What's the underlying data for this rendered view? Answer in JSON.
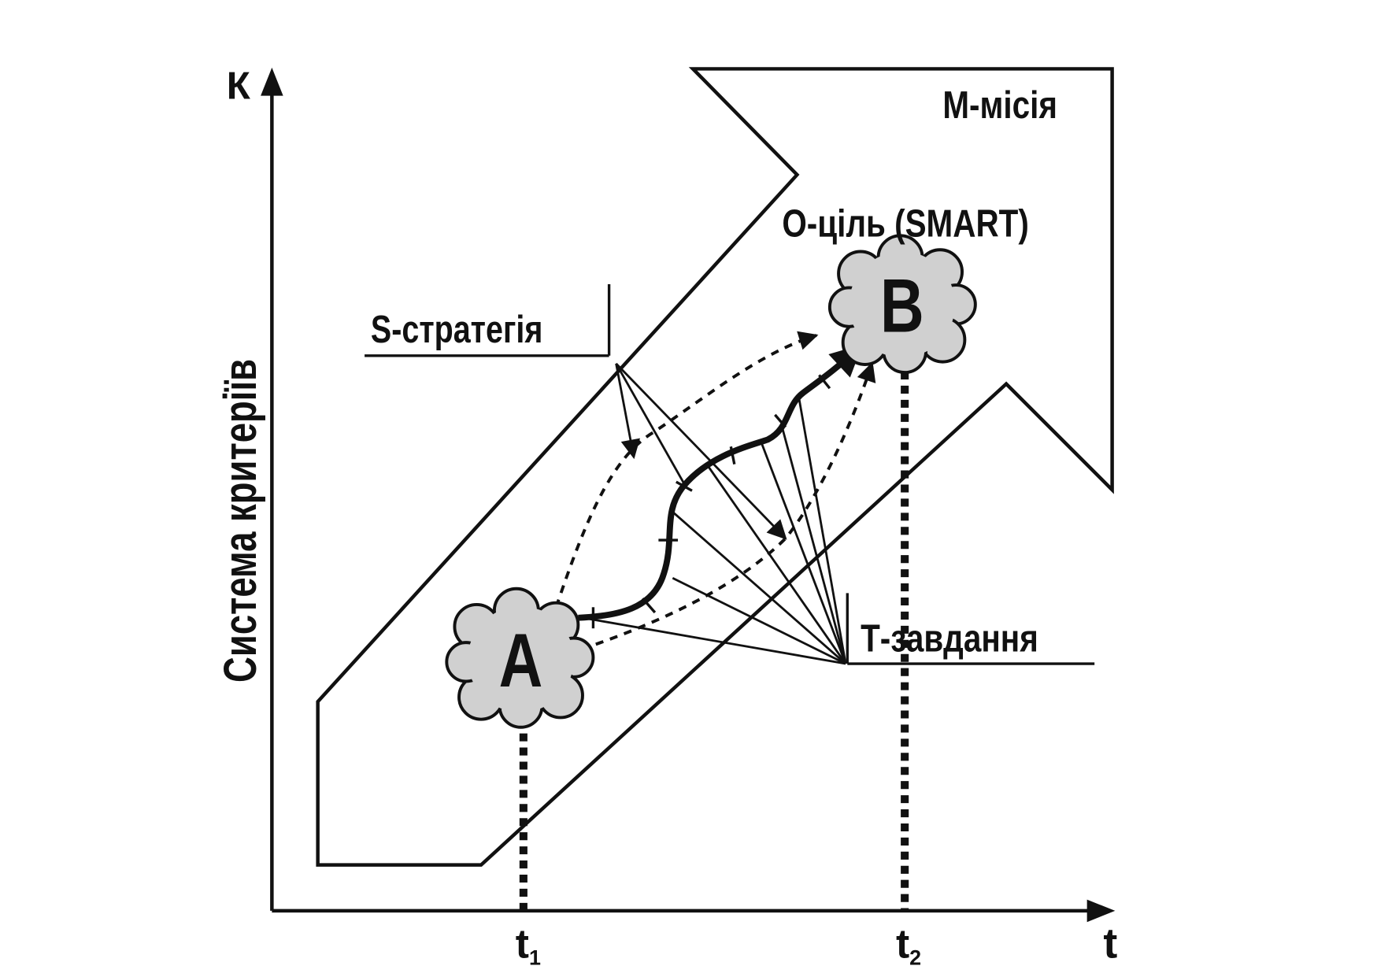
{
  "axes": {
    "y_letter": "К",
    "y_title": "Система критеріїв",
    "x_letter": "t",
    "t1": {
      "letter": "t",
      "sub": "1"
    },
    "t2": {
      "letter": "t",
      "sub": "2"
    }
  },
  "labels": {
    "mission": "М-місія",
    "goal": "О-ціль (SMART)",
    "strategy": "S-стратегія",
    "task": "Т-завдання"
  },
  "nodes": [
    {
      "label": "A"
    },
    {
      "label": "B"
    }
  ]
}
